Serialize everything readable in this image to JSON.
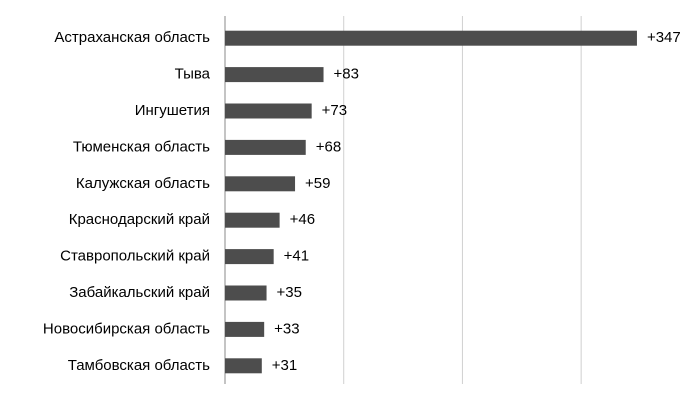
{
  "chart_data": {
    "type": "bar",
    "orientation": "horizontal",
    "categories": [
      "Астраханская область",
      "Тыва",
      "Ингушетия",
      "Тюменская область",
      "Калужская область",
      "Краснодарский край",
      "Ставропольский край",
      "Забайкальский край",
      "Новосибирская область",
      "Тамбовская область"
    ],
    "values": [
      347,
      83,
      73,
      68,
      59,
      46,
      41,
      35,
      33,
      31
    ],
    "value_labels": [
      "+347",
      "+83",
      "+73",
      "+68",
      "+59",
      "+46",
      "+41",
      "+35",
      "+33",
      "+31"
    ],
    "color": "#4d4d4d",
    "xlim": [
      0,
      390
    ],
    "xticks": [
      0,
      100,
      200,
      300
    ],
    "grid": true
  }
}
